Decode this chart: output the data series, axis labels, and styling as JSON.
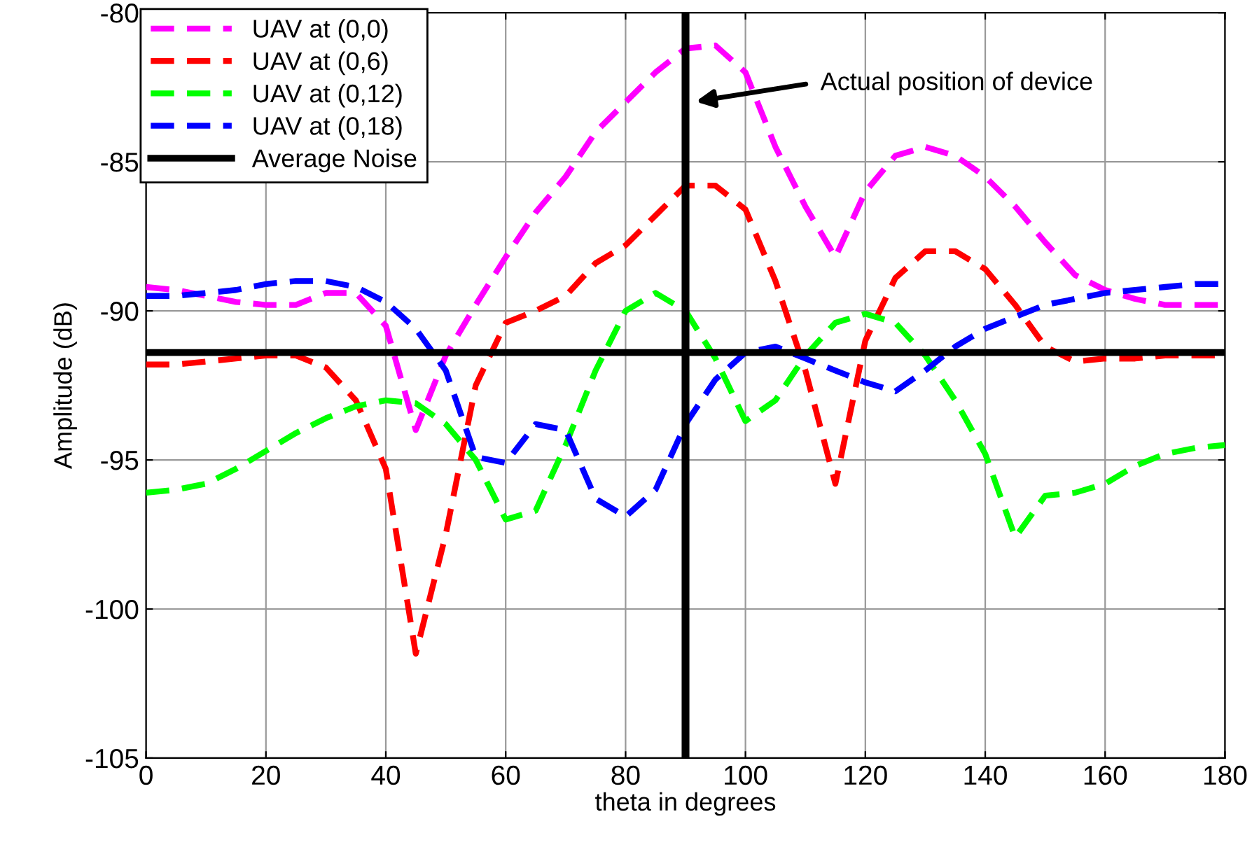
{
  "chart_data": {
    "type": "line",
    "xlabel": "theta in degrees",
    "ylabel": "Amplitude (dB)",
    "x": [
      0,
      5,
      10,
      15,
      20,
      25,
      30,
      35,
      40,
      45,
      50,
      55,
      60,
      65,
      70,
      75,
      80,
      85,
      90,
      95,
      100,
      105,
      110,
      115,
      120,
      125,
      130,
      135,
      140,
      145,
      150,
      155,
      160,
      165,
      170,
      175,
      180
    ],
    "series": [
      {
        "name": "UAV at (0,0)",
        "color": "#ff00ff",
        "line_style": "dashed",
        "values": [
          -89.2,
          -89.3,
          -89.5,
          -89.7,
          -89.8,
          -89.8,
          -89.4,
          -89.4,
          -90.5,
          -94.0,
          -91.5,
          -89.8,
          -88.2,
          -86.7,
          -85.5,
          -84.0,
          -83.0,
          -82.0,
          -81.2,
          -81.1,
          -82.0,
          -84.5,
          -86.5,
          -88.2,
          -86.0,
          -84.8,
          -84.5,
          -84.8,
          -85.5,
          -86.5,
          -87.7,
          -88.8,
          -89.3,
          -89.6,
          -89.8,
          -89.8,
          -89.8
        ]
      },
      {
        "name": "UAV at (0,6)",
        "color": "#ff0000",
        "line_style": "dashed",
        "values": [
          -91.8,
          -91.8,
          -91.7,
          -91.6,
          -91.5,
          -91.5,
          -91.9,
          -93.0,
          -95.3,
          -101.5,
          -97.5,
          -92.5,
          -90.4,
          -90.0,
          -89.5,
          -88.4,
          -87.8,
          -86.8,
          -85.8,
          -85.8,
          -86.6,
          -89.0,
          -92.0,
          -95.8,
          -91.0,
          -88.9,
          -88.0,
          -88.0,
          -88.6,
          -89.8,
          -91.2,
          -91.7,
          -91.6,
          -91.6,
          -91.5,
          -91.5,
          -91.5
        ]
      },
      {
        "name": "UAV at (0,12)",
        "color": "#00ff00",
        "line_style": "dashed",
        "values": [
          -96.1,
          -96.0,
          -95.8,
          -95.3,
          -94.7,
          -94.1,
          -93.6,
          -93.2,
          -93.0,
          -93.1,
          -93.8,
          -95.0,
          -97.0,
          -96.7,
          -94.5,
          -92.0,
          -90.0,
          -89.4,
          -90.0,
          -91.6,
          -93.7,
          -93.0,
          -91.5,
          -90.4,
          -90.1,
          -90.4,
          -91.5,
          -93.0,
          -94.8,
          -97.6,
          -96.2,
          -96.1,
          -95.8,
          -95.2,
          -94.8,
          -94.6,
          -94.5
        ]
      },
      {
        "name": "UAV at (0,18)",
        "color": "#0000ff",
        "line_style": "dashed",
        "values": [
          -89.5,
          -89.5,
          -89.4,
          -89.3,
          -89.1,
          -89.0,
          -89.0,
          -89.2,
          -89.7,
          -90.6,
          -92.0,
          -94.9,
          -95.1,
          -93.8,
          -94.0,
          -96.3,
          -96.9,
          -96.0,
          -93.8,
          -92.3,
          -91.4,
          -91.2,
          -91.6,
          -92.0,
          -92.4,
          -92.7,
          -92.0,
          -91.2,
          -90.6,
          -90.2,
          -89.8,
          -89.6,
          -89.4,
          -89.3,
          -89.2,
          -89.1,
          -89.1
        ]
      },
      {
        "name": "Average Noise",
        "color": "#000000",
        "line_style": "solid",
        "x": [
          0,
          180
        ],
        "values": [
          -91.4,
          -91.4
        ]
      }
    ],
    "ref_lines": [
      {
        "axis": "x",
        "value": 90,
        "color": "#000000",
        "line_style": "solid"
      }
    ],
    "annotations": [
      "Actual position of device"
    ],
    "xlim": [
      0,
      180
    ],
    "xticks": [
      0,
      20,
      40,
      60,
      80,
      100,
      120,
      140,
      160,
      180
    ],
    "ylim": [
      -105,
      -80
    ],
    "yticks": [
      -105,
      -100,
      -95,
      -90,
      -85,
      -80
    ],
    "grid": true,
    "legend": "top left",
    "marker": "none"
  }
}
